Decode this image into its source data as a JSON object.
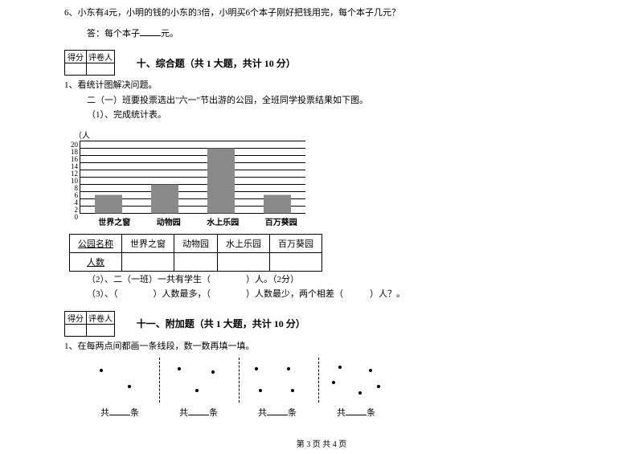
{
  "q6": {
    "text": "6、小东有4元，小明的钱的小东的3倍，小明买6个本子刚好把钱用完，每个本子几元？",
    "answer_prefix": "答：每个本子",
    "answer_suffix": "元。"
  },
  "scorebox": {
    "left": "得分",
    "right": "评卷人"
  },
  "section10": {
    "title": "十、综合题（共 1 大题，共计 10 分）",
    "q1": "1、看统计图解决问题。",
    "q1a": "二（一）班要投票选出\"六一\"节出游的公园，全班同学投票结果如下图。",
    "q1b": "（1）、完成统计表。"
  },
  "chart": {
    "yaxis_label": "（人",
    "ymax": 20,
    "ytick_step": 2,
    "categories": [
      "世界之窗",
      "动物园",
      "水上乐园",
      "百万葵园"
    ],
    "values": [
      5,
      8,
      18,
      5
    ],
    "bar_color": "#8a8a8a",
    "grid_color": "#000000",
    "background": "#ffffff",
    "tick_fontsize": 9,
    "label_fontsize": 10
  },
  "table": {
    "headers": [
      "公园名称",
      "世界之窗",
      "动物园",
      "水上乐园",
      "百万葵园"
    ],
    "row2_label": "人数"
  },
  "section10_sub": {
    "q2": "（2）、二（一班）一共有学生（　　　　）人。（2分）",
    "q3": "（3）、（　　　　）人数最多，（　　　　）人数最少，两个相差（　　　）人？。"
  },
  "section11": {
    "title": "十一、附加题（共 1 大题，共计 10 分）",
    "q1": "1、在每两点间都画一条线段，数一数再填一填。"
  },
  "dots": {
    "label_prefix": "共",
    "label_suffix": "条",
    "panels": [
      {
        "points": [
          [
            20,
            10
          ],
          [
            55,
            30
          ]
        ]
      },
      {
        "points": [
          [
            18,
            8
          ],
          [
            60,
            12
          ],
          [
            40,
            35
          ]
        ]
      },
      {
        "points": [
          [
            15,
            8
          ],
          [
            55,
            8
          ],
          [
            20,
            35
          ],
          [
            60,
            35
          ]
        ]
      },
      {
        "points": [
          [
            20,
            6
          ],
          [
            58,
            10
          ],
          [
            12,
            25
          ],
          [
            45,
            38
          ],
          [
            68,
            30
          ]
        ]
      }
    ]
  },
  "footer": "第 3 页 共 4 页"
}
